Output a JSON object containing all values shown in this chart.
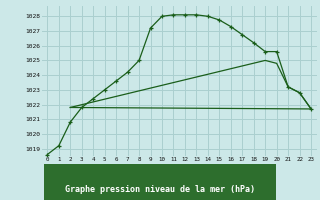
{
  "title": "Graphe pression niveau de la mer (hPa)",
  "bg_color": "#cce8e8",
  "grid_color": "#aacfcf",
  "line_color": "#1a5e1a",
  "title_bg": "#2d6e2d",
  "title_fg": "#ffffff",
  "xlim": [
    -0.5,
    23.5
  ],
  "ylim": [
    1018.5,
    1028.7
  ],
  "yticks": [
    1019,
    1020,
    1021,
    1022,
    1023,
    1024,
    1025,
    1026,
    1027,
    1028
  ],
  "xticks": [
    0,
    1,
    2,
    3,
    4,
    5,
    6,
    7,
    8,
    9,
    10,
    11,
    12,
    13,
    14,
    15,
    16,
    17,
    18,
    19,
    20,
    21,
    22,
    23
  ],
  "line1_x": [
    0,
    1,
    2,
    3,
    4,
    5,
    6,
    7,
    8,
    9,
    10,
    11,
    12,
    13,
    14,
    15,
    16,
    17,
    18,
    19,
    20,
    21,
    22,
    23
  ],
  "line1_y": [
    1018.6,
    1019.2,
    1020.8,
    1021.8,
    1022.4,
    1023.0,
    1023.6,
    1024.2,
    1025.0,
    1027.2,
    1028.0,
    1028.1,
    1028.1,
    1028.1,
    1028.0,
    1027.75,
    1027.3,
    1026.75,
    1026.2,
    1025.6,
    1025.6,
    1023.2,
    1022.8,
    1021.7
  ],
  "line2_x": [
    2,
    23
  ],
  "line2_y": [
    1021.8,
    1021.7
  ],
  "line3_x": [
    2,
    19,
    20,
    21,
    22,
    23
  ],
  "line3_y": [
    1021.8,
    1025.0,
    1024.8,
    1023.2,
    1022.8,
    1021.7
  ]
}
